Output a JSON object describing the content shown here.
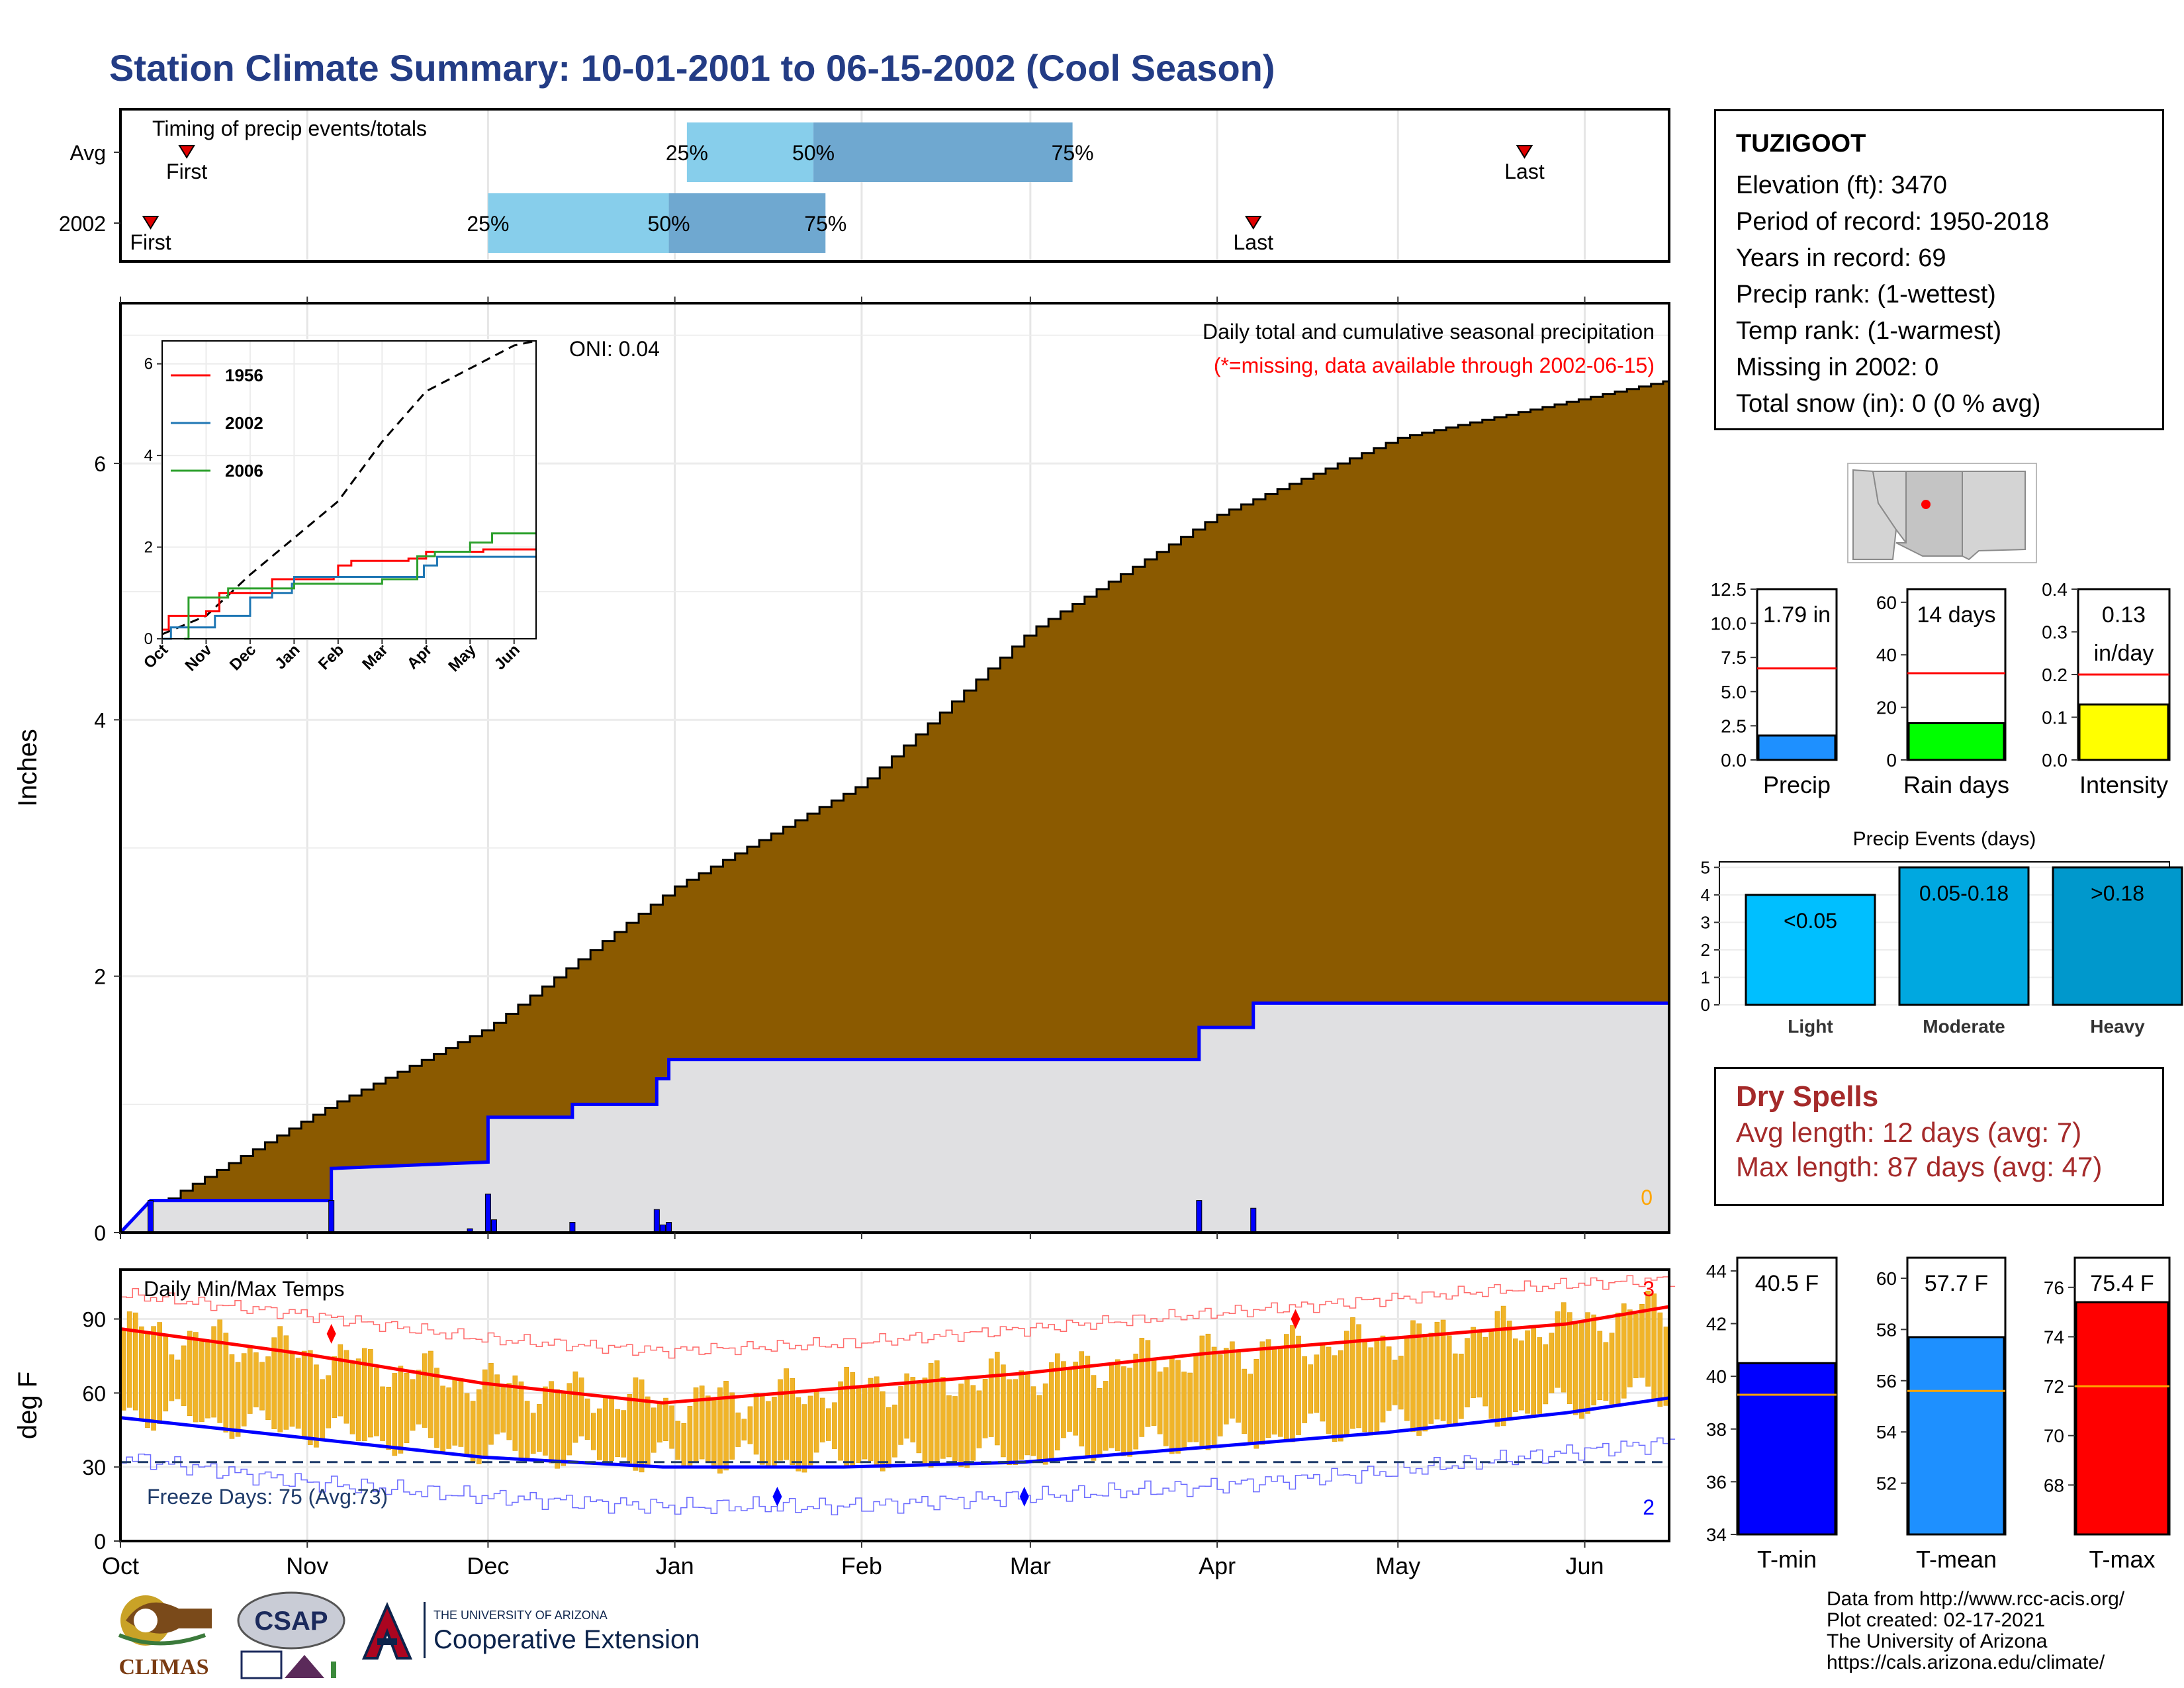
{
  "title": "Station Climate Summary: 10-01-2001 to 06-15-2002 (Cool Season)",
  "station": {
    "name": "TUZIGOOT",
    "lines": [
      "Elevation (ft): 3470",
      "Period of record: 1950-2018",
      "Years in record: 69",
      "Precip rank:  (1-wettest)",
      "Temp rank:  (1-warmest)",
      "Missing in 2002: 0",
      "Total snow (in): 0 (0 % avg)"
    ]
  },
  "dry_spells": {
    "header": "Dry Spells",
    "avg": "Avg length: 12 days (avg: 7)",
    "max": "Max length: 87 days (avg: 47)"
  },
  "credits": [
    "Data from http://www.rcc-acis.org/",
    "Plot created: 02-17-2021",
    "The University of Arizona",
    "https://cals.arizona.edu/climate/"
  ],
  "logos": {
    "climas": "CLIMAS",
    "csap": "CSAP",
    "ua_small": "THE UNIVERSITY OF ARIZONA",
    "ua_big": "Cooperative Extension"
  },
  "colors": {
    "brown": "#8b5a00",
    "blue": "#0000ff",
    "light_blue": "#87ceeb",
    "mid_blue": "#6fa8d0",
    "red": "#ff0000",
    "gold": "#f0b429",
    "title_blue": "#233c85"
  },
  "chart_data": [
    {
      "id": "timing",
      "type": "bar",
      "title": "Timing of precip events/totals",
      "rows": [
        {
          "label": "Avg",
          "first": "2001-10-12",
          "p25": "2002-01-03",
          "p50": "2002-01-24",
          "p75": "2002-03-08",
          "last": "2002-05-22"
        },
        {
          "label": "2002",
          "first": "2001-10-06",
          "p25": "2001-12-01",
          "p50": "2001-12-31",
          "p75": "2002-01-26",
          "last": "2002-04-07"
        }
      ],
      "pct_labels": [
        "25%",
        "50%",
        "75%"
      ],
      "marker_labels": [
        "First",
        "Last"
      ]
    },
    {
      "id": "precip",
      "type": "area",
      "ylabel": "Inches",
      "ylim": [
        0,
        7.25
      ],
      "yticks": [
        0,
        2,
        4,
        6
      ],
      "xticks": [
        "Oct",
        "Nov",
        "Dec",
        "Jan",
        "Feb",
        "Mar",
        "Apr",
        "May",
        "Jun"
      ],
      "annotation": "ONI: 0.04",
      "caption": "Daily total and cumulative seasonal precipitation",
      "caption_missing": "(*=missing, data available through 2002-06-15)",
      "end_label": "0",
      "avg_cumulative": [
        {
          "x": "2001-10-01",
          "y": 0.0
        },
        {
          "x": "2001-10-10",
          "y": 0.3
        },
        {
          "x": "2001-11-05",
          "y": 1.0
        },
        {
          "x": "2001-12-01",
          "y": 1.6
        },
        {
          "x": "2002-01-01",
          "y": 2.7
        },
        {
          "x": "2002-02-01",
          "y": 3.5
        },
        {
          "x": "2002-03-01",
          "y": 4.7
        },
        {
          "x": "2002-04-01",
          "y": 5.6
        },
        {
          "x": "2002-05-01",
          "y": 6.2
        },
        {
          "x": "2002-06-15",
          "y": 6.65
        }
      ],
      "cumulative_2002": [
        {
          "x": "2001-10-01",
          "y": 0.0
        },
        {
          "x": "2001-10-06",
          "y": 0.25
        },
        {
          "x": "2001-11-05",
          "y": 0.25
        },
        {
          "x": "2001-11-05",
          "y": 0.5
        },
        {
          "x": "2001-12-01",
          "y": 0.55
        },
        {
          "x": "2001-12-01",
          "y": 0.9
        },
        {
          "x": "2001-12-15",
          "y": 0.9
        },
        {
          "x": "2001-12-15",
          "y": 1.0
        },
        {
          "x": "2001-12-29",
          "y": 1.0
        },
        {
          "x": "2001-12-29",
          "y": 1.2
        },
        {
          "x": "2001-12-31",
          "y": 1.2
        },
        {
          "x": "2001-12-31",
          "y": 1.35
        },
        {
          "x": "2002-03-29",
          "y": 1.35
        },
        {
          "x": "2002-03-29",
          "y": 1.6
        },
        {
          "x": "2002-04-07",
          "y": 1.6
        },
        {
          "x": "2002-04-07",
          "y": 1.79
        },
        {
          "x": "2002-06-15",
          "y": 1.79
        }
      ],
      "daily_2002": [
        {
          "x": "2001-10-06",
          "y": 0.25
        },
        {
          "x": "2001-11-05",
          "y": 0.25
        },
        {
          "x": "2001-11-28",
          "y": 0.03
        },
        {
          "x": "2001-12-01",
          "y": 0.3
        },
        {
          "x": "2001-12-02",
          "y": 0.1
        },
        {
          "x": "2001-12-15",
          "y": 0.08
        },
        {
          "x": "2001-12-29",
          "y": 0.18
        },
        {
          "x": "2001-12-30",
          "y": 0.06
        },
        {
          "x": "2001-12-31",
          "y": 0.08
        },
        {
          "x": "2002-03-29",
          "y": 0.25
        },
        {
          "x": "2002-04-07",
          "y": 0.19
        }
      ]
    },
    {
      "id": "inset",
      "type": "line",
      "ylim": [
        0,
        6.5
      ],
      "yticks": [
        0,
        2,
        4,
        6
      ],
      "xticks": [
        "Oct",
        "Nov",
        "Dec",
        "Jan",
        "Feb",
        "Mar",
        "Apr",
        "May",
        "Jun"
      ],
      "series": [
        {
          "name": "1956",
          "color": "#ff0000",
          "points": [
            [
              0,
              0.2
            ],
            [
              0.15,
              0.5
            ],
            [
              1,
              0.6
            ],
            [
              1.3,
              1.0
            ],
            [
              2.5,
              1.3
            ],
            [
              3.9,
              1.35
            ],
            [
              4.0,
              1.6
            ],
            [
              4.3,
              1.7
            ],
            [
              5.6,
              1.75
            ],
            [
              6.0,
              1.9
            ],
            [
              7.3,
              1.95
            ],
            [
              8.5,
              1.95
            ]
          ]
        },
        {
          "name": "2002",
          "color": "#1f77b4",
          "points": [
            [
              0,
              0
            ],
            [
              0.2,
              0.25
            ],
            [
              1.2,
              0.5
            ],
            [
              2.0,
              0.9
            ],
            [
              2.5,
              1.0
            ],
            [
              2.95,
              1.2
            ],
            [
              3.0,
              1.35
            ],
            [
              5.95,
              1.6
            ],
            [
              6.25,
              1.79
            ],
            [
              8.5,
              1.79
            ]
          ]
        },
        {
          "name": "2006",
          "color": "#2ca02c",
          "points": [
            [
              0.5,
              0
            ],
            [
              0.6,
              0.9
            ],
            [
              1.5,
              1.1
            ],
            [
              3.0,
              1.2
            ],
            [
              5.0,
              1.3
            ],
            [
              5.8,
              1.8
            ],
            [
              6.2,
              1.9
            ],
            [
              7.0,
              2.1
            ],
            [
              7.5,
              2.3
            ],
            [
              8.5,
              2.3
            ]
          ]
        }
      ],
      "average": [
        [
          0,
          0.1
        ],
        [
          1,
          0.5
        ],
        [
          2,
          1.4
        ],
        [
          3,
          2.2
        ],
        [
          4,
          3.0
        ],
        [
          5,
          4.3
        ],
        [
          6,
          5.4
        ],
        [
          7,
          5.9
        ],
        [
          8,
          6.4
        ],
        [
          8.5,
          6.5
        ]
      ]
    },
    {
      "id": "temps",
      "type": "line",
      "title": "Daily Min/Max Temps",
      "ylabel": "deg F",
      "ylim": [
        0,
        110
      ],
      "yticks": [
        0,
        30,
        60,
        90
      ],
      "xticks": [
        "Oct",
        "Nov",
        "Dec",
        "Jan",
        "Feb",
        "Mar",
        "Apr",
        "May",
        "Jun"
      ],
      "freeze_line": 32,
      "freeze_label": "Freeze Days: 75 (Avg:73)",
      "record_high_count": "3",
      "record_low_count": "2",
      "avg_max": [
        [
          0,
          86
        ],
        [
          30,
          76
        ],
        [
          60,
          64
        ],
        [
          90,
          56
        ],
        [
          120,
          62
        ],
        [
          150,
          68
        ],
        [
          180,
          76
        ],
        [
          210,
          82
        ],
        [
          240,
          88
        ],
        [
          257,
          95
        ]
      ],
      "avg_min": [
        [
          0,
          50
        ],
        [
          30,
          42
        ],
        [
          60,
          34
        ],
        [
          90,
          30
        ],
        [
          120,
          30
        ],
        [
          150,
          32
        ],
        [
          180,
          38
        ],
        [
          210,
          44
        ],
        [
          240,
          52
        ],
        [
          257,
          58
        ]
      ],
      "record_max": [
        [
          0,
          100
        ],
        [
          30,
          92
        ],
        [
          60,
          82
        ],
        [
          90,
          77
        ],
        [
          120,
          80
        ],
        [
          150,
          86
        ],
        [
          180,
          92
        ],
        [
          210,
          98
        ],
        [
          240,
          104
        ],
        [
          257,
          106
        ]
      ],
      "record_min": [
        [
          0,
          34
        ],
        [
          30,
          24
        ],
        [
          60,
          18
        ],
        [
          90,
          14
        ],
        [
          120,
          14
        ],
        [
          150,
          18
        ],
        [
          180,
          22
        ],
        [
          210,
          28
        ],
        [
          240,
          36
        ],
        [
          257,
          40
        ]
      ]
    },
    {
      "id": "bar_precip",
      "type": "bar",
      "categories": [
        "Precip"
      ],
      "values": [
        1.79
      ],
      "avg": 6.7,
      "ylim": [
        0,
        12.5
      ],
      "yticks": [
        0.0,
        2.5,
        5.0,
        7.5,
        10.0,
        12.5
      ],
      "label": "1.79 in",
      "color": "#1e90ff"
    },
    {
      "id": "bar_raindays",
      "type": "bar",
      "categories": [
        "Rain days"
      ],
      "values": [
        14
      ],
      "avg": 33,
      "ylim": [
        0,
        65
      ],
      "yticks": [
        0,
        20,
        40,
        60
      ],
      "label": "14 days",
      "color": "#00ff00"
    },
    {
      "id": "bar_intensity",
      "type": "bar",
      "categories": [
        "Intensity"
      ],
      "values": [
        0.13
      ],
      "avg": 0.2,
      "ylim": [
        0,
        0.4
      ],
      "yticks": [
        0.0,
        0.1,
        0.2,
        0.3,
        0.4
      ],
      "label_lines": [
        "0.13",
        "in/day"
      ],
      "color": "#ffff00"
    },
    {
      "id": "events",
      "type": "bar",
      "title": "Precip Events (days)",
      "categories": [
        "Light",
        "Moderate",
        "Heavy"
      ],
      "values": [
        4,
        5,
        5
      ],
      "labels": [
        "<0.05",
        "0.05-0.18",
        ">0.18"
      ],
      "colors": [
        "#00bfff",
        "#00a8e0",
        "#0098cc"
      ],
      "ylim": [
        0,
        5.2
      ],
      "yticks": [
        0,
        1,
        2,
        3,
        4,
        5
      ]
    },
    {
      "id": "bar_tmin",
      "type": "bar",
      "categories": [
        "T-min"
      ],
      "values": [
        40.5
      ],
      "avg": 39.3,
      "ylim": [
        34,
        44.5
      ],
      "yticks": [
        34,
        36,
        38,
        40,
        42,
        44
      ],
      "label": "40.5 F",
      "color": "#0000ff"
    },
    {
      "id": "bar_tmean",
      "type": "bar",
      "categories": [
        "T-mean"
      ],
      "values": [
        57.7
      ],
      "avg": 55.6,
      "ylim": [
        50,
        60.8
      ],
      "yticks": [
        52,
        54,
        56,
        58,
        60
      ],
      "label": "57.7 F",
      "color": "#1e90ff"
    },
    {
      "id": "bar_tmax",
      "type": "bar",
      "categories": [
        "T-max"
      ],
      "values": [
        75.4
      ],
      "avg": 72.0,
      "ylim": [
        66,
        77.2
      ],
      "yticks": [
        68,
        70,
        72,
        74,
        76
      ],
      "label": "75.4 F",
      "color": "#ff0000"
    }
  ]
}
